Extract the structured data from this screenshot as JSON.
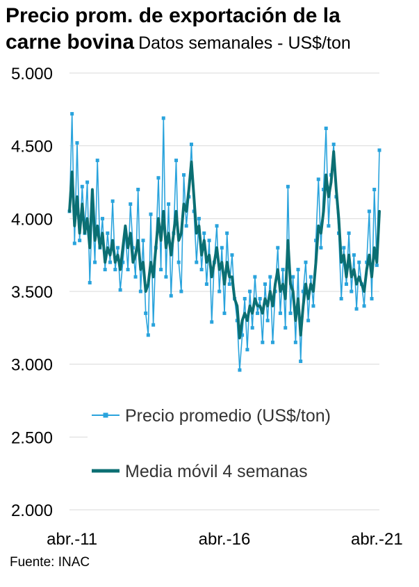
{
  "header": {
    "title_part1": "Precio prom. de exportación de la",
    "title_part2": "carne bovina",
    "subtitle": "Datos semanales - US$/ton"
  },
  "source": "Fuente: INAC",
  "colors": {
    "price": "#29a3dc",
    "moving_average": "#0b6f73",
    "grid": "#d9d9d9"
  },
  "chart_data": {
    "type": "line",
    "title": "Precio prom. de exportación de la carne bovina",
    "subtitle": "Datos semanales - US$/ton",
    "ylim": [
      2000,
      5000
    ],
    "yticks": [
      "2.000",
      "2.500",
      "3.000",
      "3.500",
      "4.000",
      "4.500",
      "5.000"
    ],
    "ytick_values": [
      2000,
      2500,
      3000,
      3500,
      4000,
      4500,
      5000
    ],
    "xlim": [
      "2011-03",
      "2021-05"
    ],
    "xticks": [
      "abr.-11",
      "abr.-16",
      "abr.-21"
    ],
    "xtick_dates": [
      "2011-04",
      "2016-04",
      "2021-04"
    ],
    "grid": "horizontal",
    "legend_position": "center-left",
    "series": [
      {
        "name": "Precio promedio (US$/ton)",
        "style": "line-with-square-markers",
        "frequency": "weekly",
        "points": [
          [
            "2011-03",
            4050
          ],
          [
            "2011-04",
            4720
          ],
          [
            "2011-05",
            3830
          ],
          [
            "2011-06",
            4520
          ],
          [
            "2011-07",
            3850
          ],
          [
            "2011-08",
            4220
          ],
          [
            "2011-09",
            3900
          ],
          [
            "2011-10",
            4250
          ],
          [
            "2011-11",
            3560
          ],
          [
            "2011-12",
            4080
          ],
          [
            "2012-01",
            3700
          ],
          [
            "2012-02",
            4400
          ],
          [
            "2012-03",
            3800
          ],
          [
            "2012-04",
            4000
          ],
          [
            "2012-05",
            3650
          ],
          [
            "2012-06",
            3900
          ],
          [
            "2012-07",
            3700
          ],
          [
            "2012-08",
            4120
          ],
          [
            "2012-09",
            3650
          ],
          [
            "2012-10",
            3800
          ],
          [
            "2012-11",
            3510
          ],
          [
            "2012-12",
            3700
          ],
          [
            "2013-01",
            3900
          ],
          [
            "2013-02",
            3650
          ],
          [
            "2013-03",
            4100
          ],
          [
            "2013-04",
            3800
          ],
          [
            "2013-05",
            3600
          ],
          [
            "2013-06",
            4200
          ],
          [
            "2013-07",
            3500
          ],
          [
            "2013-08",
            3850
          ],
          [
            "2013-09",
            3350
          ],
          [
            "2013-10",
            3200
          ],
          [
            "2013-11",
            4030
          ],
          [
            "2013-12",
            3270
          ],
          [
            "2014-01",
            3800
          ],
          [
            "2014-02",
            4280
          ],
          [
            "2014-03",
            3650
          ],
          [
            "2014-04",
            4690
          ],
          [
            "2014-05",
            3600
          ],
          [
            "2014-06",
            4100
          ],
          [
            "2014-07",
            3470
          ],
          [
            "2014-08",
            3900
          ],
          [
            "2014-09",
            4400
          ],
          [
            "2014-10",
            3700
          ],
          [
            "2014-11",
            3500
          ],
          [
            "2014-12",
            4300
          ],
          [
            "2015-01",
            3950
          ],
          [
            "2015-02",
            4150
          ],
          [
            "2015-03",
            4510
          ],
          [
            "2015-04",
            4050
          ],
          [
            "2015-05",
            3700
          ],
          [
            "2015-06",
            4000
          ],
          [
            "2015-07",
            3650
          ],
          [
            "2015-08",
            3900
          ],
          [
            "2015-09",
            3550
          ],
          [
            "2015-10",
            3850
          ],
          [
            "2015-11",
            3290
          ],
          [
            "2015-12",
            3700
          ],
          [
            "2016-01",
            3950
          ],
          [
            "2016-02",
            3500
          ],
          [
            "2016-03",
            3800
          ],
          [
            "2016-04",
            3350
          ],
          [
            "2016-05",
            3900
          ],
          [
            "2016-06",
            3550
          ],
          [
            "2016-07",
            3750
          ],
          [
            "2016-08",
            3450
          ],
          [
            "2016-09",
            3300
          ],
          [
            "2016-10",
            2960
          ],
          [
            "2016-11",
            3200
          ],
          [
            "2016-12",
            3450
          ],
          [
            "2017-01",
            3100
          ],
          [
            "2017-02",
            3500
          ],
          [
            "2017-03",
            3250
          ],
          [
            "2017-04",
            3600
          ],
          [
            "2017-05",
            3350
          ],
          [
            "2017-06",
            3450
          ],
          [
            "2017-07",
            3150
          ],
          [
            "2017-08",
            3550
          ],
          [
            "2017-09",
            3300
          ],
          [
            "2017-10",
            3600
          ],
          [
            "2017-11",
            3150
          ],
          [
            "2017-12",
            3500
          ],
          [
            "2018-01",
            3800
          ],
          [
            "2018-02",
            3350
          ],
          [
            "2018-03",
            3650
          ],
          [
            "2018-04",
            3250
          ],
          [
            "2018-05",
            4220
          ],
          [
            "2018-06",
            3350
          ],
          [
            "2018-07",
            3600
          ],
          [
            "2018-08",
            3150
          ],
          [
            "2018-09",
            3650
          ],
          [
            "2018-10",
            3020
          ],
          [
            "2018-11",
            3500
          ],
          [
            "2018-12",
            3700
          ],
          [
            "2019-01",
            3300
          ],
          [
            "2019-02",
            3600
          ],
          [
            "2019-03",
            3400
          ],
          [
            "2019-04",
            3850
          ],
          [
            "2019-05",
            4270
          ],
          [
            "2019-06",
            3800
          ],
          [
            "2019-07",
            4200
          ],
          [
            "2019-08",
            4620
          ],
          [
            "2019-09",
            3950
          ],
          [
            "2019-10",
            4300
          ],
          [
            "2019-11",
            4510
          ],
          [
            "2019-12",
            4150
          ],
          [
            "2020-01",
            3900
          ],
          [
            "2020-02",
            3450
          ],
          [
            "2020-03",
            3800
          ],
          [
            "2020-04",
            3550
          ],
          [
            "2020-05",
            3900
          ],
          [
            "2020-06",
            3500
          ],
          [
            "2020-07",
            3750
          ],
          [
            "2020-08",
            3380
          ],
          [
            "2020-09",
            3700
          ],
          [
            "2020-10",
            3550
          ],
          [
            "2020-11",
            3400
          ],
          [
            "2020-12",
            3700
          ],
          [
            "2021-01",
            4050
          ],
          [
            "2021-02",
            3450
          ],
          [
            "2021-03",
            4200
          ],
          [
            "2021-04",
            3680
          ],
          [
            "2021-05",
            4470
          ]
        ]
      },
      {
        "name": "Media móvil 4 semanas",
        "style": "thick-line",
        "frequency": "weekly",
        "points": [
          [
            "2011-03",
            4050
          ],
          [
            "2011-04",
            4320
          ],
          [
            "2011-05",
            3950
          ],
          [
            "2011-06",
            4150
          ],
          [
            "2011-07",
            3900
          ],
          [
            "2011-08",
            4100
          ],
          [
            "2011-09",
            3900
          ],
          [
            "2011-10",
            4000
          ],
          [
            "2011-11",
            3800
          ],
          [
            "2011-12",
            4200
          ],
          [
            "2012-01",
            3850
          ],
          [
            "2012-02",
            3950
          ],
          [
            "2012-03",
            3800
          ],
          [
            "2012-04",
            3900
          ],
          [
            "2012-05",
            3700
          ],
          [
            "2012-06",
            3800
          ],
          [
            "2012-07",
            3750
          ],
          [
            "2012-08",
            3850
          ],
          [
            "2012-09",
            3700
          ],
          [
            "2012-10",
            3750
          ],
          [
            "2012-11",
            3650
          ],
          [
            "2012-12",
            3800
          ],
          [
            "2013-01",
            3950
          ],
          [
            "2013-02",
            3800
          ],
          [
            "2013-03",
            3900
          ],
          [
            "2013-04",
            3700
          ],
          [
            "2013-05",
            3750
          ],
          [
            "2013-06",
            3850
          ],
          [
            "2013-07",
            3650
          ],
          [
            "2013-08",
            3700
          ],
          [
            "2013-09",
            3500
          ],
          [
            "2013-10",
            3550
          ],
          [
            "2013-11",
            3700
          ],
          [
            "2013-12",
            3600
          ],
          [
            "2014-01",
            3800
          ],
          [
            "2014-02",
            4000
          ],
          [
            "2014-03",
            3850
          ],
          [
            "2014-04",
            4050
          ],
          [
            "2014-05",
            3800
          ],
          [
            "2014-06",
            3900
          ],
          [
            "2014-07",
            3750
          ],
          [
            "2014-08",
            3900
          ],
          [
            "2014-09",
            4050
          ],
          [
            "2014-10",
            3850
          ],
          [
            "2014-11",
            3900
          ],
          [
            "2014-12",
            4100
          ],
          [
            "2015-01",
            4050
          ],
          [
            "2015-02",
            4200
          ],
          [
            "2015-03",
            4390
          ],
          [
            "2015-04",
            4150
          ],
          [
            "2015-05",
            3900
          ],
          [
            "2015-06",
            3950
          ],
          [
            "2015-07",
            3750
          ],
          [
            "2015-08",
            3850
          ],
          [
            "2015-09",
            3700
          ],
          [
            "2015-10",
            3750
          ],
          [
            "2015-11",
            3600
          ],
          [
            "2015-12",
            3700
          ],
          [
            "2016-01",
            3800
          ],
          [
            "2016-02",
            3650
          ],
          [
            "2016-03",
            3700
          ],
          [
            "2016-04",
            3550
          ],
          [
            "2016-05",
            3700
          ],
          [
            "2016-06",
            3600
          ],
          [
            "2016-07",
            3600
          ],
          [
            "2016-08",
            3450
          ],
          [
            "2016-09",
            3400
          ],
          [
            "2016-10",
            3180
          ],
          [
            "2016-11",
            3300
          ],
          [
            "2016-12",
            3350
          ],
          [
            "2017-01",
            3300
          ],
          [
            "2017-02",
            3400
          ],
          [
            "2017-03",
            3350
          ],
          [
            "2017-04",
            3450
          ],
          [
            "2017-05",
            3400
          ],
          [
            "2017-06",
            3400
          ],
          [
            "2017-07",
            3350
          ],
          [
            "2017-08",
            3450
          ],
          [
            "2017-09",
            3400
          ],
          [
            "2017-10",
            3500
          ],
          [
            "2017-11",
            3400
          ],
          [
            "2017-12",
            3550
          ],
          [
            "2018-01",
            3650
          ],
          [
            "2018-02",
            3500
          ],
          [
            "2018-03",
            3550
          ],
          [
            "2018-04",
            3450
          ],
          [
            "2018-05",
            3850
          ],
          [
            "2018-06",
            3550
          ],
          [
            "2018-07",
            3500
          ],
          [
            "2018-08",
            3300
          ],
          [
            "2018-09",
            3450
          ],
          [
            "2018-10",
            3200
          ],
          [
            "2018-11",
            3400
          ],
          [
            "2018-12",
            3550
          ],
          [
            "2019-01",
            3450
          ],
          [
            "2019-02",
            3550
          ],
          [
            "2019-03",
            3500
          ],
          [
            "2019-04",
            3700
          ],
          [
            "2019-05",
            3950
          ],
          [
            "2019-06",
            3900
          ],
          [
            "2019-07",
            4050
          ],
          [
            "2019-08",
            4300
          ],
          [
            "2019-09",
            4150
          ],
          [
            "2019-10",
            4250
          ],
          [
            "2019-11",
            4460
          ],
          [
            "2019-12",
            4200
          ],
          [
            "2020-01",
            4000
          ],
          [
            "2020-02",
            3700
          ],
          [
            "2020-03",
            3750
          ],
          [
            "2020-04",
            3600
          ],
          [
            "2020-05",
            3750
          ],
          [
            "2020-06",
            3600
          ],
          [
            "2020-07",
            3650
          ],
          [
            "2020-08",
            3550
          ],
          [
            "2020-09",
            3600
          ],
          [
            "2020-10",
            3550
          ],
          [
            "2020-11",
            3500
          ],
          [
            "2020-12",
            3650
          ],
          [
            "2021-01",
            3750
          ],
          [
            "2021-02",
            3600
          ],
          [
            "2021-03",
            3800
          ],
          [
            "2021-04",
            3700
          ],
          [
            "2021-05",
            4050
          ]
        ]
      }
    ]
  }
}
